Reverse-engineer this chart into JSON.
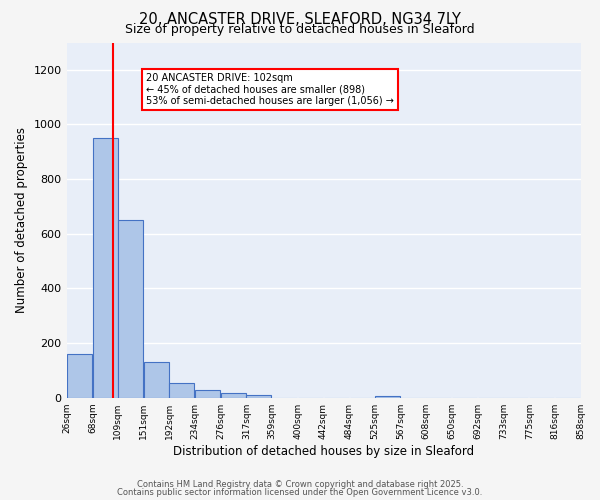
{
  "title1": "20, ANCASTER DRIVE, SLEAFORD, NG34 7LY",
  "title2": "Size of property relative to detached houses in Sleaford",
  "xlabel": "Distribution of detached houses by size in Sleaford",
  "ylabel": "Number of detached properties",
  "bar_left_edges": [
    26,
    68,
    109,
    151,
    192,
    234,
    276,
    317,
    359,
    400,
    442,
    484,
    525,
    567,
    608,
    650,
    692,
    733,
    775,
    816
  ],
  "bar_heights": [
    160,
    950,
    650,
    130,
    55,
    30,
    18,
    10,
    0,
    0,
    0,
    0,
    8,
    0,
    0,
    0,
    0,
    0,
    0,
    0
  ],
  "bin_width": 41,
  "bar_color": "#aec6e8",
  "bar_edge_color": "#4472c4",
  "tick_labels": [
    "26sqm",
    "68sqm",
    "109sqm",
    "151sqm",
    "192sqm",
    "234sqm",
    "276sqm",
    "317sqm",
    "359sqm",
    "400sqm",
    "442sqm",
    "484sqm",
    "525sqm",
    "567sqm",
    "608sqm",
    "650sqm",
    "692sqm",
    "733sqm",
    "775sqm",
    "816sqm",
    "858sqm"
  ],
  "red_line_x": 102,
  "annotation_title": "20 ANCASTER DRIVE: 102sqm",
  "annotation_line1": "← 45% of detached houses are smaller (898)",
  "annotation_line2": "53% of semi-detached houses are larger (1,056) →",
  "ylim": [
    0,
    1300
  ],
  "yticks": [
    0,
    200,
    400,
    600,
    800,
    1000,
    1200
  ],
  "xlim_min": 26,
  "xlim_max": 858,
  "background_color": "#e8eef8",
  "grid_color": "#ffffff",
  "fig_bg_color": "#f5f5f5",
  "footer1": "Contains HM Land Registry data © Crown copyright and database right 2025.",
  "footer2": "Contains public sector information licensed under the Open Government Licence v3.0."
}
